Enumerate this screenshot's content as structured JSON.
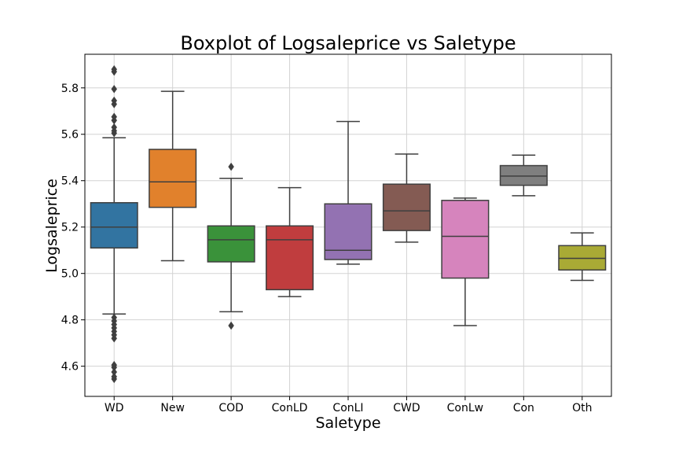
{
  "chart_data": {
    "type": "box",
    "title": "Boxplot of Logsaleprice vs Saletype",
    "xlabel": "Saletype",
    "ylabel": "Logsaleprice",
    "ylim": [
      4.47,
      5.945
    ],
    "yticks": [
      4.6,
      4.8,
      5.0,
      5.2,
      5.4,
      5.6,
      5.8
    ],
    "ytick_labels": [
      "4.6",
      "4.8",
      "5.0",
      "5.2",
      "5.4",
      "5.6",
      "5.8"
    ],
    "grid": true,
    "categories": [
      "WD",
      "New",
      "COD",
      "ConLD",
      "ConLI",
      "CWD",
      "ConLw",
      "Con",
      "Oth"
    ],
    "boxes": [
      {
        "category": "WD",
        "color": "#3274a1",
        "whisker_low": 4.825,
        "q1": 5.11,
        "median": 5.2,
        "q3": 5.305,
        "whisker_high": 5.585,
        "outliers": [
          4.545,
          4.555,
          4.575,
          4.595,
          4.605,
          4.72,
          4.735,
          4.75,
          4.765,
          4.78,
          4.795,
          4.81,
          5.605,
          5.615,
          5.63,
          5.66,
          5.675,
          5.73,
          5.745,
          5.795,
          5.87,
          5.88
        ]
      },
      {
        "category": "New",
        "color": "#e1812c",
        "whisker_low": 5.055,
        "q1": 5.285,
        "median": 5.395,
        "q3": 5.535,
        "whisker_high": 5.785,
        "outliers": []
      },
      {
        "category": "COD",
        "color": "#3a923a",
        "whisker_low": 4.835,
        "q1": 5.05,
        "median": 5.145,
        "q3": 5.205,
        "whisker_high": 5.41,
        "outliers": [
          4.775,
          5.46
        ]
      },
      {
        "category": "ConLD",
        "color": "#c03d3e",
        "whisker_low": 4.9,
        "q1": 4.93,
        "median": 5.145,
        "q3": 5.205,
        "whisker_high": 5.37,
        "outliers": []
      },
      {
        "category": "ConLI",
        "color": "#9372b2",
        "whisker_low": 5.04,
        "q1": 5.06,
        "median": 5.1,
        "q3": 5.3,
        "whisker_high": 5.655,
        "outliers": []
      },
      {
        "category": "CWD",
        "color": "#845b53",
        "whisker_low": 5.135,
        "q1": 5.185,
        "median": 5.27,
        "q3": 5.385,
        "whisker_high": 5.515,
        "outliers": []
      },
      {
        "category": "ConLw",
        "color": "#d684bd",
        "whisker_low": 4.775,
        "q1": 4.98,
        "median": 5.16,
        "q3": 5.315,
        "whisker_high": 5.325,
        "outliers": []
      },
      {
        "category": "Con",
        "color": "#7f7f7f",
        "whisker_low": 5.335,
        "q1": 5.38,
        "median": 5.42,
        "q3": 5.465,
        "whisker_high": 5.51,
        "outliers": []
      },
      {
        "category": "Oth",
        "color": "#a9aa35",
        "whisker_low": 4.97,
        "q1": 5.015,
        "median": 5.065,
        "q3": 5.12,
        "whisker_high": 5.175,
        "outliers": []
      }
    ]
  }
}
